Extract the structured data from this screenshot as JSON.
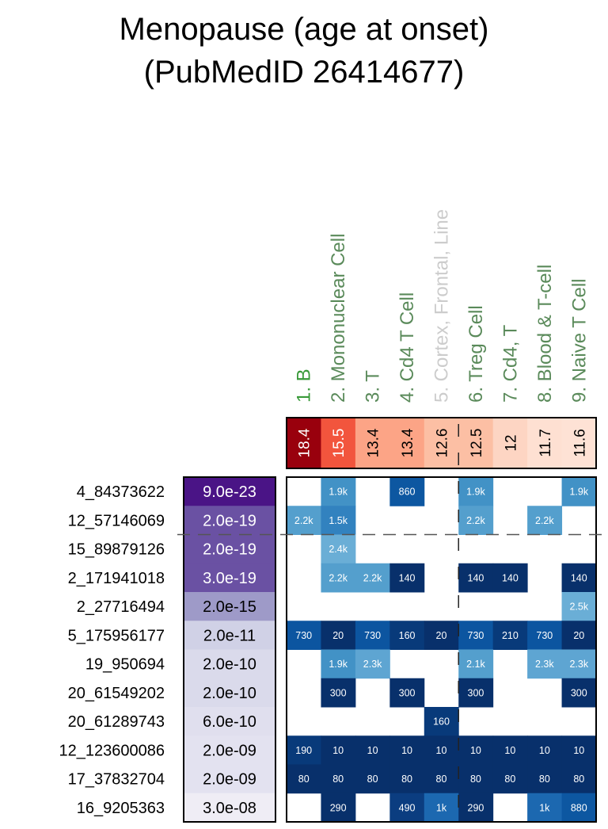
{
  "chart_data": {
    "type": "heatmap",
    "title": [
      "Menopause (age at onset)",
      "(PubMedID 26414677)"
    ],
    "columns": [
      {
        "label": "1. B",
        "enrichment": 18.4,
        "label_color": "#3a9a3a"
      },
      {
        "label": "2. Mononuclear Cell",
        "enrichment": 15.5,
        "label_color": "#5a8a5a"
      },
      {
        "label": "3. T",
        "enrichment": 13.4,
        "label_color": "#5a8a5a"
      },
      {
        "label": "4. Cd4 T Cell",
        "enrichment": 13.4,
        "label_color": "#5a8a5a"
      },
      {
        "label": "5. Cortex, Frontal, Line",
        "enrichment": 12.6,
        "label_color": "#cccccc"
      },
      {
        "label": "6. Treg Cell",
        "enrichment": 12.5,
        "label_color": "#5a8a5a"
      },
      {
        "label": "7. Cd4, T",
        "enrichment": 12,
        "label_color": "#5a8a5a"
      },
      {
        "label": "8. Blood & T-cell",
        "enrichment": 11.7,
        "label_color": "#5a8a5a"
      },
      {
        "label": "9. Naive T Cell",
        "enrichment": 11.6,
        "label_color": "#5a8a5a"
      }
    ],
    "enrichment_display": [
      "18.4",
      "15.5",
      "13.4",
      "13.4",
      "12.6",
      "12.5",
      "12",
      "11.7",
      "11.6"
    ],
    "rows": [
      {
        "snp": "4_84373622",
        "pvalue": "9.0e-23",
        "cells": [
          null,
          "1.9k",
          null,
          "860",
          null,
          "1.9k",
          null,
          null,
          "1.9k"
        ]
      },
      {
        "snp": "12_57146069",
        "pvalue": "2.0e-19",
        "cells": [
          "2.2k",
          "1.5k",
          null,
          null,
          null,
          "2.2k",
          null,
          "2.2k",
          null
        ]
      },
      {
        "snp": "15_89879126",
        "pvalue": "2.0e-19",
        "cells": [
          null,
          "2.4k",
          null,
          null,
          null,
          null,
          null,
          null,
          null
        ]
      },
      {
        "snp": "2_171941018",
        "pvalue": "3.0e-19",
        "cells": [
          null,
          "2.2k",
          "2.2k",
          "140",
          null,
          "140",
          "140",
          null,
          "140"
        ]
      },
      {
        "snp": "2_27716494",
        "pvalue": "2.0e-15",
        "cells": [
          null,
          null,
          null,
          null,
          null,
          null,
          null,
          null,
          "2.5k"
        ]
      },
      {
        "snp": "5_175956177",
        "pvalue": "2.0e-11",
        "cells": [
          "730",
          "20",
          "730",
          "160",
          "20",
          "730",
          "210",
          "730",
          "20"
        ]
      },
      {
        "snp": "19_950694",
        "pvalue": "2.0e-10",
        "cells": [
          null,
          "1.9k",
          "2.3k",
          null,
          null,
          "2.1k",
          null,
          "2.3k",
          "2.3k"
        ]
      },
      {
        "snp": "20_61549202",
        "pvalue": "2.0e-10",
        "cells": [
          null,
          "300",
          null,
          "300",
          null,
          "300",
          null,
          null,
          "300"
        ]
      },
      {
        "snp": "20_61289743",
        "pvalue": "6.0e-10",
        "cells": [
          null,
          null,
          null,
          null,
          "160",
          null,
          null,
          null,
          null
        ]
      },
      {
        "snp": "12_123600086",
        "pvalue": "2.0e-09",
        "cells": [
          "190",
          "10",
          "10",
          "10",
          "10",
          "10",
          "10",
          "10",
          "10"
        ]
      },
      {
        "snp": "17_37832704",
        "pvalue": "2.0e-09",
        "cells": [
          "80",
          "80",
          "80",
          "80",
          "80",
          "80",
          "80",
          "80",
          "80"
        ]
      },
      {
        "snp": "16_9205363",
        "pvalue": "3.0e-08",
        "cells": [
          null,
          "290",
          null,
          "490",
          "1k",
          "290",
          null,
          "1k",
          "880"
        ]
      }
    ],
    "pvalue_colors": [
      "#4a1486",
      "#6a51a3",
      "#6a51a3",
      "#6a51a3",
      "#9e9ac8",
      "#d0d1e6",
      "#dadaeb",
      "#dadaeb",
      "#e0dfee",
      "#e3e2f0",
      "#e3e2f0",
      "#efedf5"
    ],
    "enrichment_colors": [
      "#99000d",
      "#f2553d",
      "#fca486",
      "#fca486",
      "#fcbfa4",
      "#fcbfa4",
      "#fdd5c3",
      "#fee0d2",
      "#fee2d5"
    ],
    "cell_color_scale": "Blues (darker = smaller rank/value)",
    "separators": {
      "horizontal_after_row": 2,
      "vertical_after_column": 5,
      "style": "dashed"
    }
  }
}
